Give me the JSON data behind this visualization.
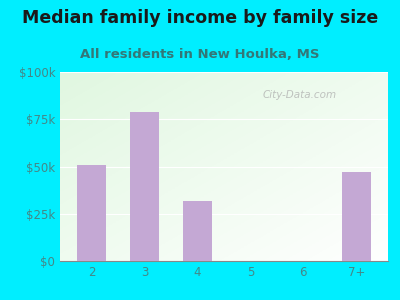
{
  "title": "Median family income by family size",
  "subtitle": "All residents in New Houlka, MS",
  "categories": [
    "2",
    "3",
    "4",
    "5",
    "6",
    "7+"
  ],
  "values": [
    51000,
    79000,
    32000,
    0,
    0,
    47000
  ],
  "bar_color": "#c4a8d4",
  "background_outer": "#00eeff",
  "yticks": [
    0,
    25000,
    50000,
    75000,
    100000
  ],
  "ytick_labels": [
    "$0",
    "$25k",
    "$50k",
    "$75k",
    "$100k"
  ],
  "title_fontsize": 12.5,
  "subtitle_fontsize": 9.5,
  "title_color": "#1a1a1a",
  "subtitle_color": "#337777",
  "tick_color": "#448888",
  "watermark": "City-Data.com"
}
